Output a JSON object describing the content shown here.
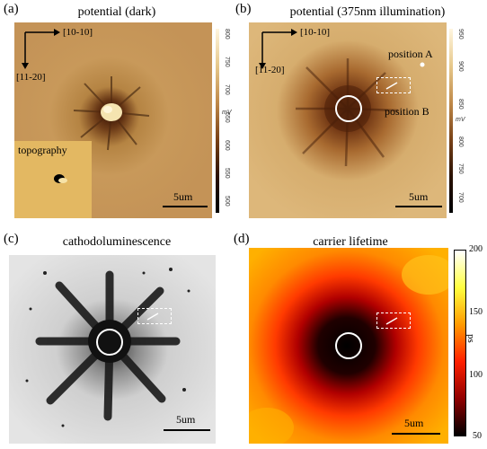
{
  "panels": {
    "a": {
      "label": "(a)",
      "title": "potential (dark)",
      "dir_x": "[10-10]",
      "dir_y": "[11-20]",
      "inset_label": "topography",
      "scalebar": "5um",
      "colorbar_ticks": [
        "800",
        "750",
        "700",
        "650",
        "600",
        "550",
        "500"
      ],
      "colorbar_unit": "mV"
    },
    "b": {
      "label": "(b)",
      "title": "potential (375nm illumination)",
      "dir_x": "[10-10]",
      "dir_y": "[11-20]",
      "position_a": "position A",
      "position_b": "position B",
      "scalebar": "5um",
      "colorbar_ticks": [
        "950",
        "900",
        "850",
        "800",
        "750",
        "700"
      ],
      "colorbar_unit": "mV"
    },
    "c": {
      "label": "(c)",
      "title": "cathodoluminescence",
      "scalebar": "5um"
    },
    "d": {
      "label": "(d)",
      "title": "carrier lifetime",
      "scalebar": "5um",
      "colorbar_ticks": [
        "200",
        "150",
        "100",
        "50"
      ],
      "colorbar_unit": "ps"
    }
  },
  "colors": {
    "afm_dark": "#3a1c0a",
    "afm_mid": "#b07a3c",
    "afm_light": "#e6c787",
    "heat_dark": "#000000",
    "heat_red": "#cc0000",
    "heat_orange": "#ff7a00",
    "heat_yellow": "#ffe040",
    "heat_white": "#ffffff"
  }
}
